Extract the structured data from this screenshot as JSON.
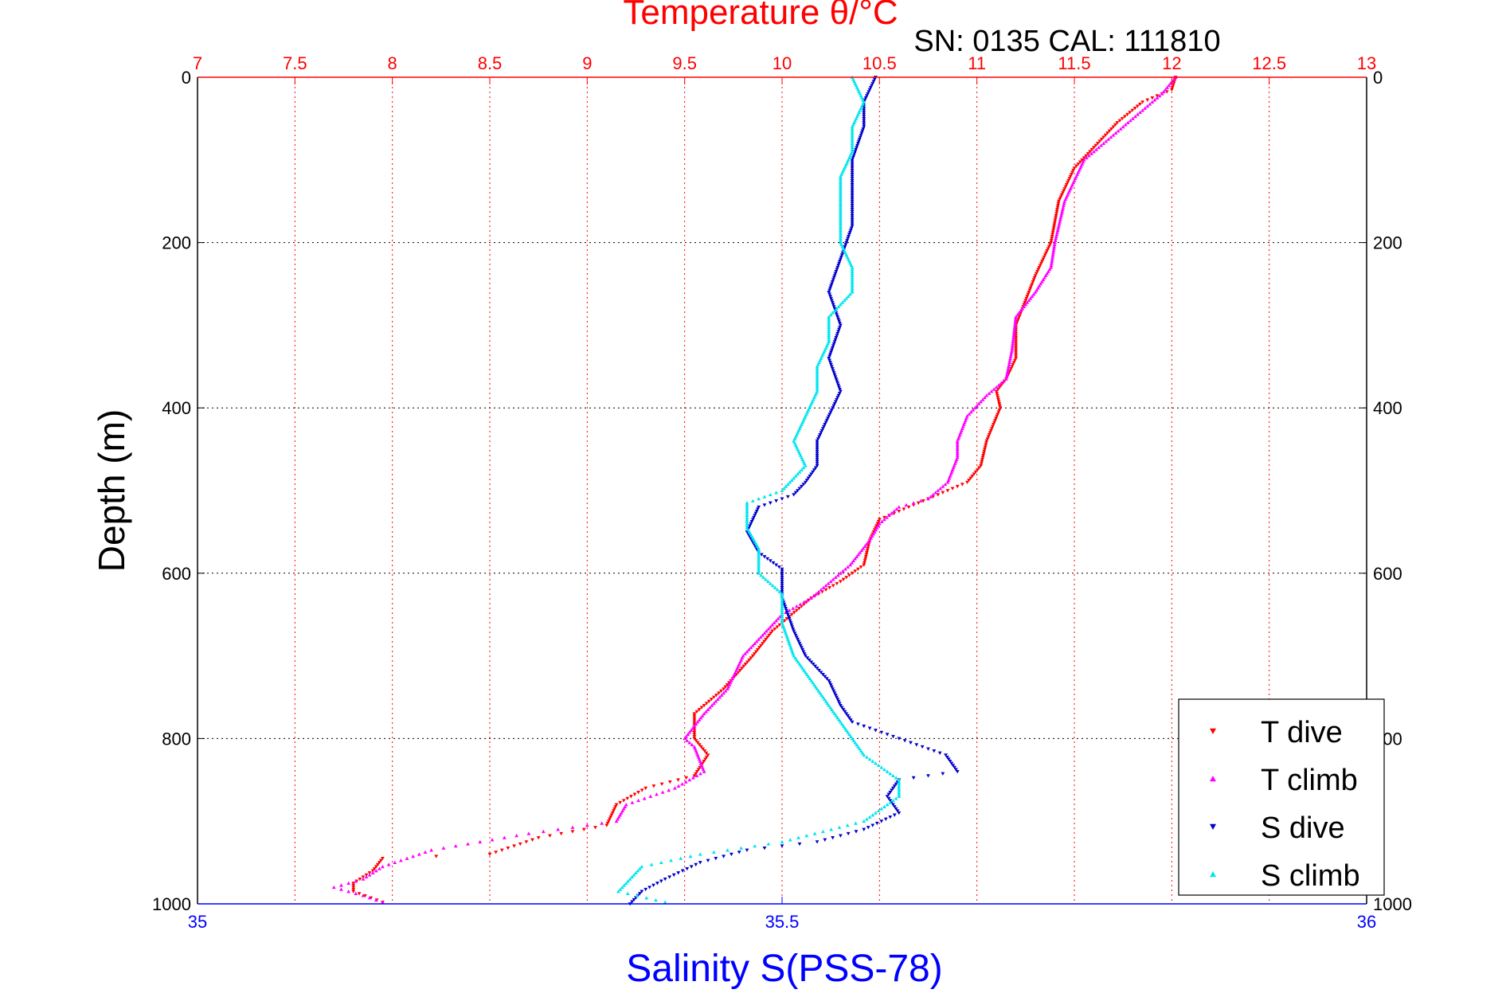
{
  "chart_data": {
    "type": "scatter",
    "title": "Temperature θ/°C",
    "annotation": "SN: 0135  CAL: 111810",
    "ylabel": "Depth (m)",
    "xlabel_bottom": "Salinity S(PSS-78)",
    "xlabel_top": "Temperature θ/°C",
    "ylim": [
      0,
      1000
    ],
    "y_reversed": true,
    "y_ticks": [
      "0",
      "200",
      "400",
      "600",
      "800",
      "1000"
    ],
    "x_top_range": [
      7,
      13
    ],
    "x_top_ticks": [
      "7",
      "7.5",
      "8",
      "8.5",
      "9",
      "9.5",
      "10",
      "10.5",
      "11",
      "11.5",
      "12",
      "12.5",
      "13"
    ],
    "x_bottom_range": [
      35,
      36
    ],
    "x_bottom_ticks": [
      "35",
      "35.5",
      "36"
    ],
    "grid": true,
    "legend_position": "bottom-right",
    "colors": {
      "temperature_axis": "#ff0000",
      "salinity_axis": "#0000ff",
      "t_dive": "#ff0000",
      "t_climb": "#ff00ff",
      "s_dive": "#0000cc",
      "s_climb": "#00e5ee"
    },
    "series": [
      {
        "name": "T dive",
        "axis": "top",
        "marker": "triangle-down",
        "points": [
          [
            12.02,
            0
          ],
          [
            12.0,
            15
          ],
          [
            11.85,
            30
          ],
          [
            11.72,
            55
          ],
          [
            11.62,
            80
          ],
          [
            11.5,
            110
          ],
          [
            11.42,
            150
          ],
          [
            11.38,
            200
          ],
          [
            11.3,
            240
          ],
          [
            11.25,
            270
          ],
          [
            11.2,
            300
          ],
          [
            11.2,
            340
          ],
          [
            11.15,
            365
          ],
          [
            11.1,
            380
          ],
          [
            11.12,
            400
          ],
          [
            11.05,
            440
          ],
          [
            11.02,
            470
          ],
          [
            10.95,
            490
          ],
          [
            10.8,
            505
          ],
          [
            10.65,
            520
          ],
          [
            10.5,
            535
          ],
          [
            10.45,
            560
          ],
          [
            10.42,
            590
          ],
          [
            10.3,
            610
          ],
          [
            10.15,
            630
          ],
          [
            10.05,
            650
          ],
          [
            9.95,
            670
          ],
          [
            9.85,
            700
          ],
          [
            9.7,
            740
          ],
          [
            9.55,
            770
          ],
          [
            9.55,
            800
          ],
          [
            9.62,
            820
          ],
          [
            9.55,
            845
          ],
          [
            9.3,
            860
          ],
          [
            9.15,
            880
          ],
          [
            9.1,
            905
          ],
          [
            8.75,
            920
          ],
          [
            8.5,
            940
          ],
          [
            7.95,
            945
          ],
          [
            7.9,
            960
          ],
          [
            7.8,
            975
          ],
          [
            7.8,
            985
          ],
          [
            7.95,
            998
          ]
        ]
      },
      {
        "name": "T climb",
        "axis": "top",
        "marker": "triangle-up",
        "points": [
          [
            12.02,
            0
          ],
          [
            11.95,
            20
          ],
          [
            11.85,
            40
          ],
          [
            11.7,
            70
          ],
          [
            11.55,
            100
          ],
          [
            11.45,
            150
          ],
          [
            11.4,
            200
          ],
          [
            11.38,
            230
          ],
          [
            11.3,
            260
          ],
          [
            11.2,
            290
          ],
          [
            11.18,
            330
          ],
          [
            11.15,
            365
          ],
          [
            11.05,
            385
          ],
          [
            10.95,
            410
          ],
          [
            10.9,
            440
          ],
          [
            10.9,
            460
          ],
          [
            10.85,
            490
          ],
          [
            10.75,
            510
          ],
          [
            10.6,
            520
          ],
          [
            10.5,
            540
          ],
          [
            10.45,
            560
          ],
          [
            10.35,
            590
          ],
          [
            10.25,
            610
          ],
          [
            10.15,
            630
          ],
          [
            10.0,
            650
          ],
          [
            9.9,
            675
          ],
          [
            9.8,
            700
          ],
          [
            9.72,
            740
          ],
          [
            9.6,
            770
          ],
          [
            9.5,
            800
          ],
          [
            9.55,
            810
          ],
          [
            9.6,
            840
          ],
          [
            9.45,
            860
          ],
          [
            9.2,
            880
          ],
          [
            9.15,
            900
          ],
          [
            9.0,
            905
          ],
          [
            8.7,
            915
          ],
          [
            8.2,
            935
          ],
          [
            7.95,
            955
          ],
          [
            7.85,
            970
          ],
          [
            7.7,
            980
          ],
          [
            7.85,
            990
          ],
          [
            7.95,
            998
          ]
        ]
      },
      {
        "name": "S dive",
        "axis": "bottom",
        "marker": "triangle-down",
        "points": [
          [
            35.58,
            0
          ],
          [
            35.57,
            30
          ],
          [
            35.57,
            60
          ],
          [
            35.56,
            100
          ],
          [
            35.56,
            150
          ],
          [
            35.56,
            180
          ],
          [
            35.55,
            220
          ],
          [
            35.54,
            260
          ],
          [
            35.55,
            300
          ],
          [
            35.54,
            340
          ],
          [
            35.55,
            380
          ],
          [
            35.54,
            410
          ],
          [
            35.53,
            440
          ],
          [
            35.53,
            470
          ],
          [
            35.52,
            490
          ],
          [
            35.51,
            505
          ],
          [
            35.48,
            520
          ],
          [
            35.47,
            550
          ],
          [
            35.48,
            575
          ],
          [
            35.5,
            595
          ],
          [
            35.5,
            630
          ],
          [
            35.51,
            670
          ],
          [
            35.52,
            700
          ],
          [
            35.54,
            730
          ],
          [
            35.55,
            760
          ],
          [
            35.56,
            780
          ],
          [
            35.6,
            800
          ],
          [
            35.64,
            820
          ],
          [
            35.65,
            840
          ],
          [
            35.6,
            850
          ],
          [
            35.59,
            870
          ],
          [
            35.6,
            890
          ],
          [
            35.57,
            910
          ],
          [
            35.53,
            925
          ],
          [
            35.47,
            935
          ],
          [
            35.43,
            950
          ],
          [
            35.4,
            970
          ],
          [
            35.38,
            985
          ],
          [
            35.37,
            1000
          ]
        ]
      },
      {
        "name": "S climb",
        "axis": "bottom",
        "marker": "triangle-up",
        "points": [
          [
            35.56,
            0
          ],
          [
            35.57,
            30
          ],
          [
            35.56,
            60
          ],
          [
            35.56,
            90
          ],
          [
            35.55,
            120
          ],
          [
            35.55,
            150
          ],
          [
            35.55,
            200
          ],
          [
            35.56,
            230
          ],
          [
            35.56,
            260
          ],
          [
            35.54,
            290
          ],
          [
            35.54,
            320
          ],
          [
            35.53,
            350
          ],
          [
            35.53,
            380
          ],
          [
            35.52,
            410
          ],
          [
            35.51,
            440
          ],
          [
            35.52,
            470
          ],
          [
            35.5,
            500
          ],
          [
            35.47,
            515
          ],
          [
            35.47,
            545
          ],
          [
            35.48,
            570
          ],
          [
            35.48,
            600
          ],
          [
            35.5,
            625
          ],
          [
            35.5,
            660
          ],
          [
            35.51,
            700
          ],
          [
            35.53,
            740
          ],
          [
            35.55,
            780
          ],
          [
            35.57,
            820
          ],
          [
            35.6,
            850
          ],
          [
            35.6,
            870
          ],
          [
            35.57,
            900
          ],
          [
            35.5,
            925
          ],
          [
            35.43,
            940
          ],
          [
            35.38,
            955
          ],
          [
            35.37,
            970
          ],
          [
            35.36,
            985
          ],
          [
            35.4,
            998
          ]
        ]
      }
    ]
  }
}
